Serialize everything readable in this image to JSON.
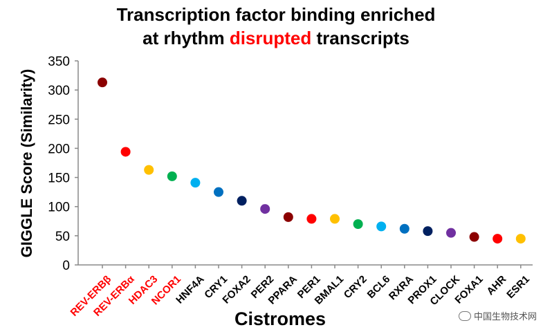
{
  "title": {
    "line1": "Transcription factor binding enriched",
    "line2_prefix": "at rhythm ",
    "line2_highlight": "disrupted",
    "line2_suffix": " transcripts"
  },
  "watermark": "中国生物技术网",
  "chart_data": {
    "type": "scatter",
    "title": "Transcription factor binding enriched at rhythm disrupted transcripts",
    "xlabel": "Cistromes",
    "ylabel": "GIGGLE Score (Similarity)",
    "ylim": [
      0,
      350
    ],
    "yticks": [
      0,
      50,
      100,
      150,
      200,
      250,
      300,
      350
    ],
    "grid": false,
    "categories": [
      "REV-ERBβ",
      "REV-ERBα",
      "HDAC3",
      "NCOR1",
      "HNF4A",
      "CRY1",
      "FOXA2",
      "PER2",
      "PPARA",
      "PER1",
      "BMAL1",
      "CRY2",
      "BCL6",
      "RXRA",
      "PROX1",
      "CLOCK",
      "FOXA1",
      "AHR",
      "ESR1"
    ],
    "values": [
      313,
      194,
      163,
      152,
      141,
      125,
      110,
      96,
      82,
      79,
      79,
      70,
      66,
      62,
      58,
      55,
      48,
      45,
      45
    ],
    "point_colors": [
      "#8b0000",
      "#ff0000",
      "#ffc000",
      "#00b050",
      "#00b0f0",
      "#0070c0",
      "#002060",
      "#7030a0",
      "#8b0000",
      "#ff0000",
      "#ffc000",
      "#00b050",
      "#00b0f0",
      "#0070c0",
      "#002060",
      "#7030a0",
      "#8b0000",
      "#ff0000",
      "#ffc000"
    ],
    "label_colors": [
      "#ff0000",
      "#ff0000",
      "#ff0000",
      "#ff0000",
      "#000000",
      "#000000",
      "#000000",
      "#000000",
      "#000000",
      "#000000",
      "#000000",
      "#000000",
      "#000000",
      "#000000",
      "#000000",
      "#000000",
      "#000000",
      "#000000",
      "#000000"
    ]
  }
}
